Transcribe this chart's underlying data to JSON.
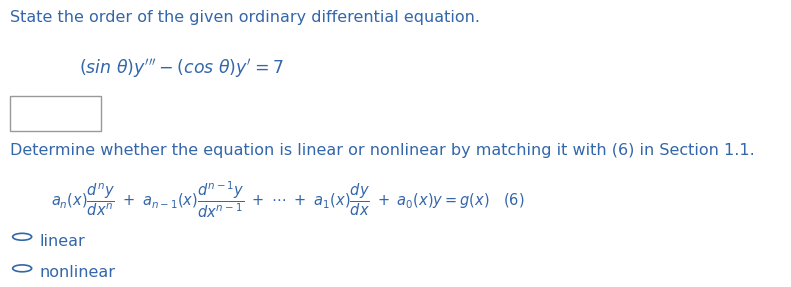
{
  "bg_color": "#ffffff",
  "text_color": "#3366aa",
  "red_color": "#cc0000",
  "line1": "State the order of the given ordinary differential equation.",
  "opt1": "linear",
  "opt2": "nonlinear",
  "font_size_main": 11.5,
  "font_size_eq": 10.5,
  "font_size_ode": 12.5,
  "fig_w": 7.91,
  "fig_h": 2.87,
  "dpi": 100
}
